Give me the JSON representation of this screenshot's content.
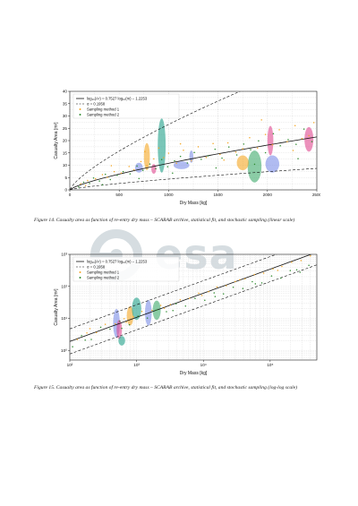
{
  "chart_data": [
    {
      "type": "scatter",
      "title": "",
      "xlabel": "Dry Mass [kg]",
      "ylabel": "Casualty Area [m²]",
      "xscale": "linear",
      "yscale": "linear",
      "xlim": [
        0,
        2500
      ],
      "ylim": [
        0,
        40
      ],
      "xticks": [
        "0",
        "500",
        "1000",
        "1500",
        "2000",
        "2500"
      ],
      "yticks": [
        "0",
        "5",
        "10",
        "15",
        "20",
        "25",
        "30",
        "35",
        "40"
      ],
      "grid": true,
      "legend_position": "top-left",
      "legend": [
        "log₁₀(Aᶜ) = 0.7527 log₁₀(m) − 1.2253",
        "σ = 0.1958",
        "Sampling method 1",
        "Sampling method 2"
      ],
      "fit": {
        "slope": 0.7527,
        "intercept": -1.2253,
        "sigma": 0.1958
      },
      "series": [
        {
          "name": "Sampling method 1",
          "color": "#f5a623",
          "x": [
            110,
            180,
            260,
            330,
            380,
            450,
            520,
            600,
            650,
            720,
            780,
            850,
            900,
            950,
            1000,
            1080,
            1150,
            1230,
            1300,
            1380,
            1450,
            1520,
            1600,
            1680,
            1750,
            1820,
            1900,
            1980,
            2050,
            2120,
            2200,
            2280,
            2350,
            2420,
            2470,
            160,
            420,
            760,
            1120,
            1560,
            1940,
            2260
          ],
          "y": [
            2.5,
            3.8,
            4.5,
            6.2,
            5.1,
            7.4,
            6.8,
            9.5,
            8.2,
            11.5,
            9.8,
            12.6,
            17.0,
            13.1,
            14.9,
            10.8,
            16.1,
            11.8,
            17.5,
            13.2,
            18.8,
            14.4,
            19.1,
            15.3,
            16.7,
            21.2,
            17.0,
            22.5,
            18.3,
            24.4,
            19.6,
            26.1,
            20.8,
            22.0,
            27.3,
            1.8,
            9.8,
            15.6,
            18.7,
            12.1,
            28.4,
            16.0
          ]
        },
        {
          "name": "Sampling method 2",
          "color": "#2e8b2e",
          "x": [
            90,
            140,
            200,
            240,
            300,
            360,
            410,
            480,
            540,
            610,
            680,
            740,
            810,
            870,
            930,
            990,
            1060,
            1120,
            1190,
            1260,
            1330,
            1400,
            1470,
            1540,
            1610,
            1690,
            1760,
            1830,
            1910,
            1980,
            2060,
            2130,
            2210,
            2290,
            2370,
            2450,
            330,
            700,
            1040,
            1480,
            1870,
            2310
          ],
          "y": [
            1.2,
            3.1,
            2.6,
            4.8,
            3.6,
            6.3,
            4.2,
            5.9,
            7.4,
            6.5,
            9.7,
            7.9,
            10.5,
            8.6,
            12.3,
            9.4,
            11.8,
            13.6,
            10.9,
            15.2,
            12.4,
            13.8,
            16.5,
            12.9,
            17.4,
            14.2,
            18.6,
            16.3,
            19.9,
            15.1,
            22.8,
            17.9,
            20.4,
            18.5,
            24.7,
            19.6,
            2.1,
            4.6,
            6.8,
            8.9,
            10.4,
            12.7
          ]
        }
      ],
      "ellipses": [
        {
          "x": 930,
          "y": 18.0,
          "rx": 40,
          "ry": 11.0,
          "color": "#1fa088"
        },
        {
          "x": 780,
          "y": 13.5,
          "rx": 30,
          "ry": 5.5,
          "color": "#f5a623"
        },
        {
          "x": 1870,
          "y": 9.5,
          "rx": 70,
          "ry": 6.5,
          "color": "#3daa6a"
        },
        {
          "x": 2420,
          "y": 20.5,
          "rx": 45,
          "ry": 5.0,
          "color": "#e0488f"
        },
        {
          "x": 2050,
          "y": 10.5,
          "rx": 70,
          "ry": 3.5,
          "color": "#7b8de8"
        },
        {
          "x": 1750,
          "y": 11.0,
          "rx": 60,
          "ry": 3.0,
          "color": "#f5a623"
        },
        {
          "x": 2030,
          "y": 20.0,
          "rx": 30,
          "ry": 6.0,
          "color": "#e0488f"
        },
        {
          "x": 1130,
          "y": 10.0,
          "rx": 80,
          "ry": 1.6,
          "color": "#7b8de8"
        },
        {
          "x": 700,
          "y": 9.0,
          "rx": 40,
          "ry": 2.0,
          "color": "#7b8de8"
        },
        {
          "x": 1230,
          "y": 13.5,
          "rx": 20,
          "ry": 2.5,
          "color": "#7b8de8"
        },
        {
          "x": 850,
          "y": 8.5,
          "rx": 25,
          "ry": 2.0,
          "color": "#e0488f"
        }
      ]
    },
    {
      "type": "scatter",
      "title": "",
      "xlabel": "Dry Mass [kg]",
      "ylabel": "Casualty Area [m²]",
      "xscale": "log",
      "yscale": "log",
      "xlim": [
        100,
        500000
      ],
      "ylim": [
        0.5,
        1000
      ],
      "xticks": [
        "10²",
        "10³",
        "10⁴",
        "10⁵"
      ],
      "yticks": [
        "10⁰",
        "10¹",
        "10²",
        "10³"
      ],
      "grid": true,
      "legend_position": "top-left",
      "legend": [
        "log₁₀(Aᶜ) = 0.7527 log₁₀(m) − 1.2253",
        "σ = 0.1958",
        "Sampling method 1",
        "Sampling method 2"
      ],
      "fit": {
        "slope": 0.7527,
        "intercept": -1.2253,
        "sigma": 0.1958
      },
      "series": [
        {
          "name": "Sampling method 1",
          "color": "#f5a623",
          "x": [
            130,
            180,
            250,
            340,
            480,
            650,
            900,
            1200,
            1700,
            2300,
            3200,
            4500,
            6200,
            8500,
            12000,
            16000,
            22000,
            30000,
            42000,
            58000,
            80000,
            110000,
            150000,
            210000,
            290000,
            400000,
            200,
            700,
            2600,
            9500,
            35000,
            130000
          ],
          "y": [
            2.2,
            3.5,
            3.6,
            6.5,
            6.8,
            9.8,
            11.2,
            16.5,
            17.8,
            25.4,
            27.1,
            37.9,
            42.5,
            61.3,
            68.4,
            96.2,
            105.0,
            141.0,
            171.0,
            235.0,
            258.0,
            352.0,
            418.0,
            570.0,
            641.0,
            892.0,
            4.8,
            7.6,
            21.0,
            52.0,
            161.0,
            315.0
          ]
        },
        {
          "name": "Sampling method 2",
          "color": "#2e8b2e",
          "x": [
            110,
            150,
            210,
            290,
            400,
            560,
            780,
            1050,
            1450,
            2000,
            2800,
            3900,
            5400,
            7500,
            10500,
            14500,
            20000,
            28000,
            39000,
            54000,
            75000,
            105000,
            145000,
            200000,
            280000,
            380000,
            170,
            600,
            3500,
            15000,
            60000,
            250000
          ],
          "y": [
            1.3,
            2.9,
            2.2,
            5.3,
            4.6,
            8.1,
            6.3,
            11.7,
            10.2,
            18.3,
            16.2,
            28.6,
            24.3,
            42.1,
            36.8,
            62.5,
            58.4,
            93.7,
            85.6,
            140.0,
            128.0,
            212.0,
            181.0,
            312.0,
            276.0,
            455.0,
            2.1,
            4.9,
            17.5,
            48.0,
            120.0,
            330.0
          ]
        }
      ],
      "ellipses": [
        {
          "x": 500,
          "y": 7.0,
          "rx": 0.05,
          "ry": 0.45,
          "color": "#7b8de8"
        },
        {
          "x": 550,
          "y": 4.5,
          "rx": 0.04,
          "ry": 0.3,
          "color": "#e0488f"
        },
        {
          "x": 800,
          "y": 12.0,
          "rx": 0.05,
          "ry": 0.3,
          "color": "#f5a623"
        },
        {
          "x": 1000,
          "y": 20.0,
          "rx": 0.07,
          "ry": 0.35,
          "color": "#1fa088"
        },
        {
          "x": 1500,
          "y": 15.0,
          "rx": 0.05,
          "ry": 0.4,
          "color": "#7b8de8"
        },
        {
          "x": 2000,
          "y": 18.0,
          "rx": 0.06,
          "ry": 0.3,
          "color": "#3daa6a"
        },
        {
          "x": 600,
          "y": 2.0,
          "rx": 0.05,
          "ry": 0.15,
          "color": "#1fa088"
        }
      ]
    }
  ],
  "captions": {
    "fig14": "Figure 14.  Casualty area as function of re-entry dry mass – SCARAB archive, statistical fit, and stochastic sampling (linear scale)",
    "fig15": "Figure 15.  Casualty area as function of re-entry dry mass – SCARAB archive, statistical fit, and stochastic sampling (log-log scale)"
  },
  "watermark": {
    "text": "esa",
    "color": "#cfd8dc"
  }
}
